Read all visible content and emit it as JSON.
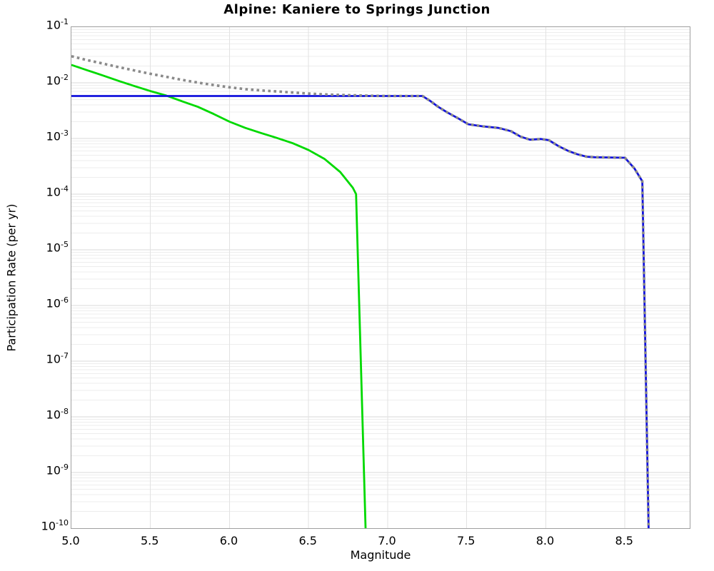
{
  "page": {
    "title": "Alpine: Kaniere to Springs Junction"
  },
  "chart_data": {
    "type": "line",
    "title": "Alpine: Kaniere to Springs Junction",
    "xlabel": "Magnitude",
    "ylabel": "Participation Rate (per yr)",
    "xlim": [
      5.0,
      8.91
    ],
    "ylim": [
      1e-10,
      0.1
    ],
    "y_scale": "log",
    "grid": true,
    "legend": "none",
    "x_ticks": [
      "5.0",
      "5.5",
      "6.0",
      "6.5",
      "7.0",
      "7.5",
      "8.0",
      "8.5"
    ],
    "y_tick_exponents": [
      "-1",
      "-2",
      "-3",
      "-4",
      "-5",
      "-6",
      "-7",
      "-8",
      "-9",
      "-10"
    ],
    "colors": {
      "border": "#a0a0a0",
      "grid_major": "#d9d9d9",
      "grid_minor": "#ededed",
      "grid_vertical": "#e2e2e2",
      "green_line": "#00d900",
      "blue_line": "#1212dd",
      "gray_dotted": "#8a8a8a"
    },
    "series": [
      {
        "name": "green-solid-line",
        "color": "#00d900",
        "style": "solid",
        "width": 2.8,
        "points": [
          [
            5.0,
            0.021
          ],
          [
            5.1,
            0.0168
          ],
          [
            5.2,
            0.0135
          ],
          [
            5.3,
            0.0108
          ],
          [
            5.4,
            0.0087
          ],
          [
            5.5,
            0.0071
          ],
          [
            5.6,
            0.0059
          ],
          [
            5.7,
            0.00465
          ],
          [
            5.8,
            0.0037
          ],
          [
            5.9,
            0.00275
          ],
          [
            6.0,
            0.002
          ],
          [
            6.1,
            0.00155
          ],
          [
            6.2,
            0.00125
          ],
          [
            6.3,
            0.00102
          ],
          [
            6.4,
            0.00082
          ],
          [
            6.5,
            0.00062
          ],
          [
            6.6,
            0.00043
          ],
          [
            6.7,
            0.00025
          ],
          [
            6.78,
            0.00013
          ],
          [
            6.8,
            0.0001
          ],
          [
            6.86,
            1e-10
          ]
        ]
      },
      {
        "name": "blue-solid-line",
        "color": "#1212dd",
        "style": "solid",
        "width": 2.8,
        "points": [
          [
            5.0,
            0.0058
          ],
          [
            7.22,
            0.0058
          ],
          [
            7.27,
            0.0047
          ],
          [
            7.32,
            0.0037
          ],
          [
            7.38,
            0.0029
          ],
          [
            7.44,
            0.00235
          ],
          [
            7.51,
            0.0018
          ],
          [
            7.6,
            0.00165
          ],
          [
            7.7,
            0.00155
          ],
          [
            7.78,
            0.00135
          ],
          [
            7.84,
            0.00108
          ],
          [
            7.9,
            0.00095
          ],
          [
            7.97,
            0.00098
          ],
          [
            8.02,
            0.00093
          ],
          [
            8.08,
            0.00073
          ],
          [
            8.14,
            0.0006
          ],
          [
            8.2,
            0.00052
          ],
          [
            8.26,
            0.00047
          ],
          [
            8.31,
            0.00046
          ],
          [
            8.5,
            0.00045
          ],
          [
            8.56,
            0.00029
          ],
          [
            8.61,
            0.00017
          ],
          [
            8.65,
            1e-10
          ]
        ]
      },
      {
        "name": "gray-dotted-line",
        "color": "#8a8a8a",
        "style": "dotted",
        "width": 3.6,
        "points": [
          [
            5.0,
            0.03
          ],
          [
            5.1,
            0.0256
          ],
          [
            5.2,
            0.0221
          ],
          [
            5.3,
            0.0191
          ],
          [
            5.4,
            0.0166
          ],
          [
            5.5,
            0.0145
          ],
          [
            5.6,
            0.0128
          ],
          [
            5.7,
            0.0113
          ],
          [
            5.8,
            0.0101
          ],
          [
            5.9,
            0.0091
          ],
          [
            6.0,
            0.0083
          ],
          [
            6.1,
            0.0077
          ],
          [
            6.2,
            0.0073
          ],
          [
            6.3,
            0.007
          ],
          [
            6.4,
            0.0067
          ],
          [
            6.5,
            0.0064
          ],
          [
            6.6,
            0.0062
          ],
          [
            6.7,
            0.00605
          ],
          [
            6.8,
            0.00595
          ],
          [
            6.9,
            0.00585
          ],
          [
            7.0,
            0.0058
          ],
          [
            7.22,
            0.0058
          ],
          [
            7.27,
            0.0047
          ],
          [
            7.32,
            0.0037
          ],
          [
            7.38,
            0.0029
          ],
          [
            7.44,
            0.00235
          ],
          [
            7.51,
            0.0018
          ],
          [
            7.6,
            0.00165
          ],
          [
            7.7,
            0.00155
          ],
          [
            7.78,
            0.00135
          ],
          [
            7.84,
            0.00108
          ],
          [
            7.9,
            0.00095
          ],
          [
            7.97,
            0.00098
          ],
          [
            8.02,
            0.00093
          ],
          [
            8.08,
            0.00073
          ],
          [
            8.14,
            0.0006
          ],
          [
            8.2,
            0.00052
          ],
          [
            8.26,
            0.00047
          ],
          [
            8.31,
            0.00046
          ],
          [
            8.5,
            0.00045
          ],
          [
            8.56,
            0.00029
          ],
          [
            8.61,
            0.00017
          ],
          [
            8.65,
            1e-10
          ]
        ]
      }
    ]
  }
}
